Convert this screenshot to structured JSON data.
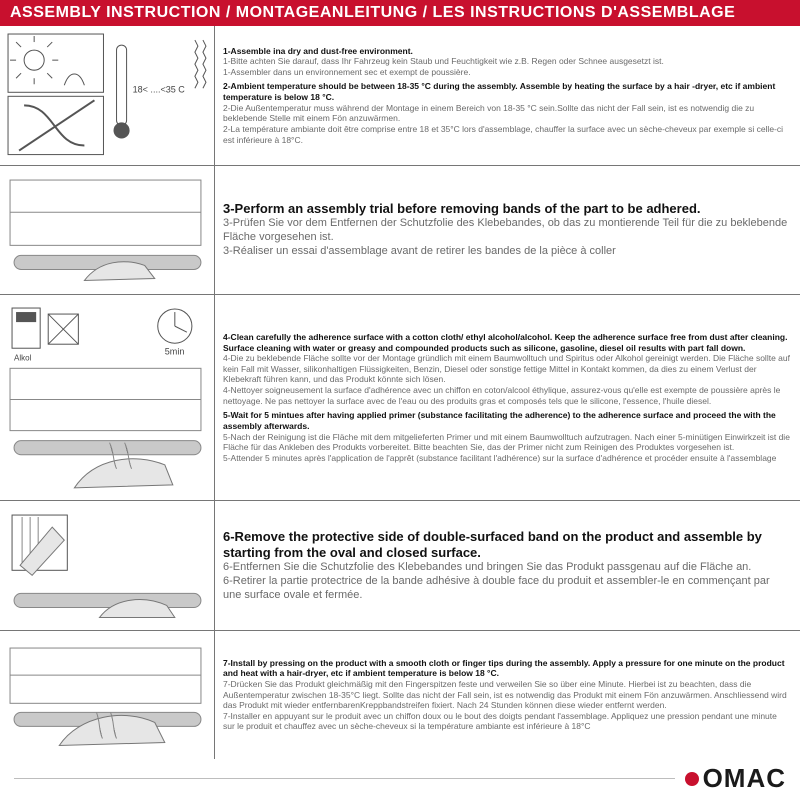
{
  "colors": {
    "header_bg": "#c8102e",
    "header_text": "#ffffff",
    "border": "#767676",
    "text_bold": "#111111",
    "text_sub": "#6a6a6a",
    "footer_line": "#bdbdbd",
    "logo_dot": "#c8102e",
    "logo_text": "#1a1a1a",
    "page_bg": "#ffffff"
  },
  "title": "ASSEMBLY INSTRUCTION / MONTAGEANLEITUNG / LES INSTRUCTIONS D'ASSEMBLAGE",
  "rows": [
    {
      "steps": [
        {
          "bold": "1-Assemble ina dry and dust-free environment.",
          "sub": "1-Bitte achten Sie darauf, dass Ihr Fahrzeug kein Staub und Feuchtigkeit wie z.B. Regen oder Schnee ausgesetzt ist.\n1-Assembler dans un environnement sec et exempt de poussière."
        },
        {
          "bold": "2-Ambient temperature should be between 18-35 °C  during the assembly. Assemble by heating the surface by a hair -dryer, etc if ambient temperature is below 18 °C.",
          "sub": "2-Die Außentemperatur muss während der Montage in einem Bereich von 18-35 °C  sein.Sollte das nicht der Fall sein, ist es notwendig die zu beklebende Stelle mit einem Fön anzuwärmen.\n2-La température ambiante doit être comprise entre 18 et 35°C lors d'assemblage, chauffer la surface avec un sèche-cheveux par exemple si celle-ci est inférieure à 18°C."
        }
      ]
    },
    {
      "steps": [
        {
          "large": true,
          "bold": "3-Perform an assembly trial before removing bands of the part to be adhered.",
          "sub": "3-Prüfen Sie vor dem Entfernen der Schutzfolie des Klebebandes, ob das zu montierende Teil für die zu beklebende Fläche vorgesehen ist.\n3-Réaliser un essai d'assemblage avant de retirer les bandes de la pièce à coller"
        }
      ]
    },
    {
      "steps": [
        {
          "bold": "4-Clean carefully the adherence surface with a cotton cloth/ ethyl alcohol/alcohol. Keep the adherence surface free from dust after cleaning. Surface cleaning with water or greasy and compounded products such as silicone, gasoline, diesel oil results with part fall down.",
          "sub": "4-Die zu beklebende Fläche sollte vor der Montage gründlich mit einem Baumwolltuch und Spiritus oder Alkohol gereinigt werden. Die Fläche sollte auf kein Fall mit Wasser, silikonhaltigen Flüssigkeiten, Benzin, Diesel oder sonstige fettige Mittel in Kontakt kommen, da dies zu einem Verlust der Klebekraft führen kann, und das Produkt könnte sich lösen.\n4-Nettoyer soigneusement la surface d'adhérence avec un chiffon en coton/alcool éthylique, assurez-vous qu'elle est exempte de poussière après le nettoyage. Ne pas nettoyer la surface avec de l'eau ou des produits gras et composés tels que le silicone, l'essence, l'huile diesel."
        },
        {
          "bold": "5-Wait for 5 mintues after having applied primer (substance facilitating the adherence) to the adherence surface and proceed the with the assembly afterwards.",
          "sub": "5-Nach der Reinigung ist die Fläche mit dem mitgelieferten Primer und mit einem Baumwolltuch aufzutragen. Nach einer 5-minütigen Einwirkzeit ist die Fläche für das Ankleben des Produkts vorbereitet. Bitte beachten Sie, das der Primer nicht zum Reinigen des Produktes vorgesehen ist.\n5-Attender 5 minutes après l'application de l'apprêt (substance facilitant l'adhérence) sur la surface d'adhérence et procéder ensuite à l'assemblage"
        }
      ]
    },
    {
      "steps": [
        {
          "large": true,
          "bold": "6-Remove the protective side of double-surfaced band on the product and assemble by starting from the oval and closed surface.",
          "sub": "6-Entfernen Sie die Schutzfolie des Klebebandes und bringen Sie das Produkt passgenau auf die Fläche an.\n6-Retirer la partie protectrice de la bande adhésive à double face du produit et assembler-le en commençant par une surface ovale et fermée."
        }
      ]
    },
    {
      "steps": [
        {
          "bold": "7-Install by pressing on the product with a smooth cloth or finger tips during the assembly. Apply a pressure for one minute on the product and heat with a hair-dryer, etc if ambient temperature is below 18 °C.",
          "sub": "7-Drücken Sie das Produkt gleichmäßig mit den Fingerspitzen feste und verweilen Sie so über eine Minute. Hierbei ist zu beachten, dass die Außentemperatur zwischen 18-35°C liegt. Sollte das nicht der Fall sein, ist es notwendig das Produkt mit einem Fön anzuwärmen. Anschliessend wird das Produkt mit wieder entfernbarenKreppbandstreifen fixiert. Nach 24 Stunden können diese wieder entfernt werden.\n7-Installer en appuyant sur le produit avec un chiffon doux ou le bout des doigts pendant l'assemblage. Appliquez une pression pendant une minute sur le produit et chauffez avec un sèche-cheveux si la température ambiante est inférieure à 18°C"
        }
      ]
    }
  ],
  "illus": {
    "temp_label": "18< ....<35 C",
    "alkol_label": "Alkol",
    "timer_label": "5min"
  },
  "logo": "OMAC"
}
